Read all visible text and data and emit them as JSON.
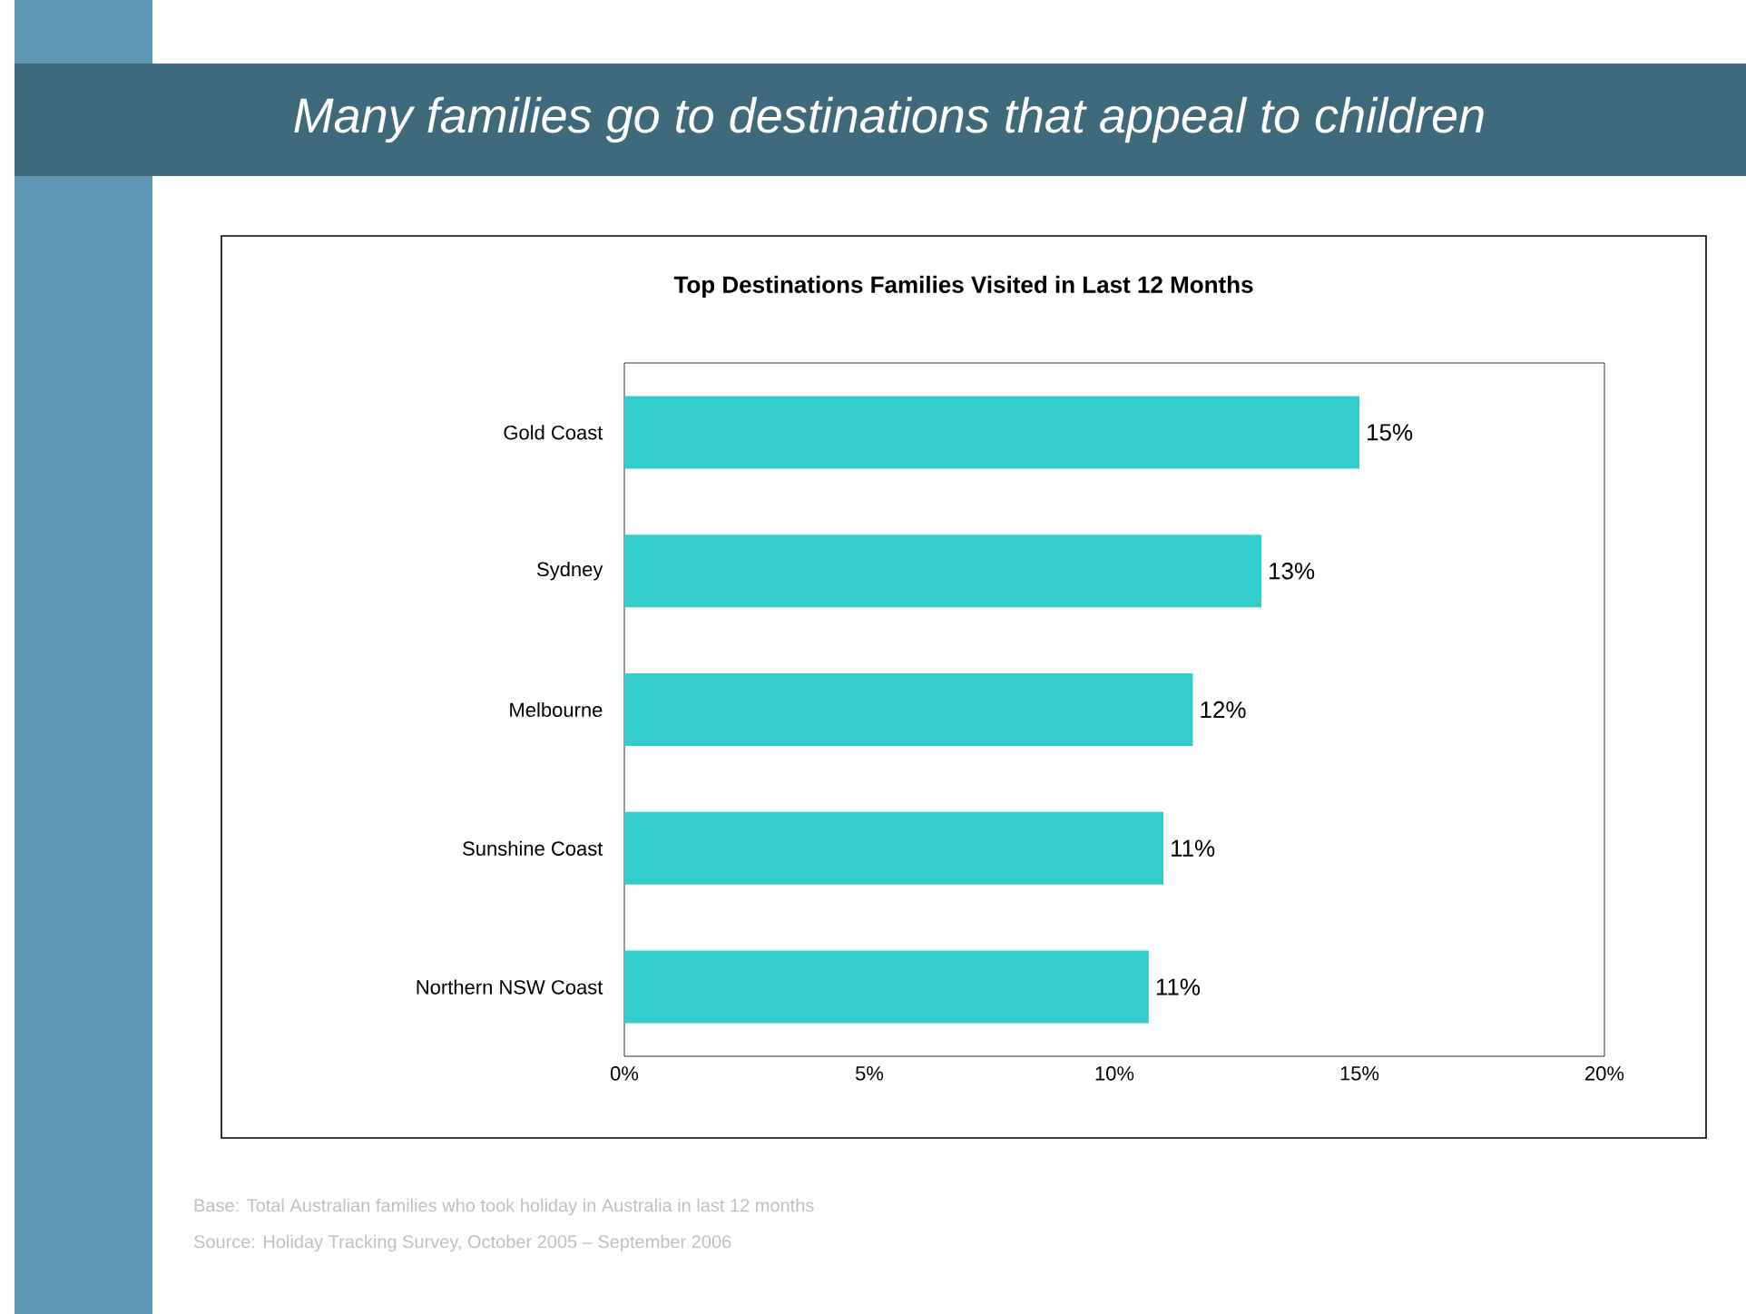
{
  "chart_data": {
    "type": "bar",
    "orientation": "horizontal",
    "title": "Many families go to destinations that appeal to children",
    "subtitle": "Top Destinations Families Visited in Last 12 Months",
    "categories": [
      "Gold Coast",
      "Sydney",
      "Melbourne",
      "Sunshine Coast",
      "Northern NSW Coast"
    ],
    "values": [
      15.0,
      13.0,
      11.6,
      11.0,
      10.7
    ],
    "value_labels": [
      "15%",
      "13%",
      "12%",
      "11%",
      "11%"
    ],
    "color": "#33cccc",
    "xlim": [
      0,
      20
    ],
    "xticks": [
      {
        "value": 0,
        "label": "0%"
      },
      {
        "value": 5,
        "label": "5%"
      },
      {
        "value": 10,
        "label": "10%"
      },
      {
        "value": 15,
        "label": "15%"
      },
      {
        "value": 20,
        "label": "20%"
      }
    ],
    "grid": false,
    "annotations": [
      "Base: Total Australian families who took holiday in Australia  in last 12 months",
      "Source: Holiday Tracking Survey, October 2005 – September 2006"
    ]
  }
}
